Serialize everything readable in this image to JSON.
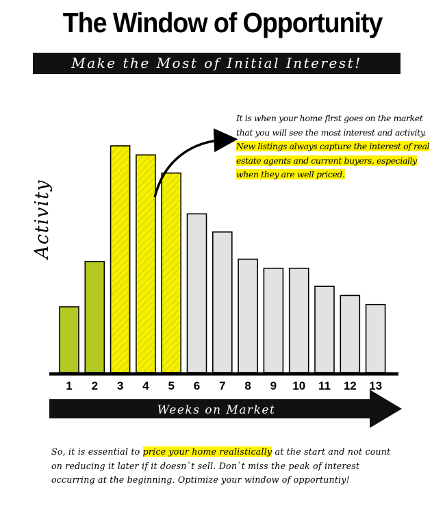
{
  "header": {
    "title": "The Window of Opportunity",
    "subtitle": "Make the Most of Initial Interest!"
  },
  "annotation": {
    "part1": "It is when your home first goes on the market that you will see the most interest and activity. ",
    "highlight": "New listings always capture the interest of real estate agents and current buyers, especially when they are well priced."
  },
  "footer": {
    "before": "So, it is essential to ",
    "highlight": "price your home realistically",
    "after": " at the start and not count on reducing it later if it doesn`t sell. Don`t miss the peak of interest occurring at the beginning. Optimize your window of opportuntiy!"
  },
  "chart_data": {
    "type": "bar",
    "ylabel": "Activity",
    "xlabel": "Weeks on Market",
    "categories": [
      "1",
      "2",
      "3",
      "4",
      "5",
      "6",
      "7",
      "8",
      "9",
      "10",
      "11",
      "12",
      "13"
    ],
    "values": [
      29,
      49,
      100,
      96,
      88,
      70,
      62,
      50,
      46,
      46,
      38,
      34,
      30
    ],
    "ylim": [
      0,
      100
    ],
    "grid": false,
    "colors": {
      "early": "#b5c924",
      "peak": "#f4f000",
      "late": "#e2e2e2",
      "peak_hatch": "#c8c400",
      "axis": "#000000"
    },
    "groups": [
      "early",
      "early",
      "peak",
      "peak",
      "peak",
      "late",
      "late",
      "late",
      "late",
      "late",
      "late",
      "late",
      "late"
    ]
  }
}
